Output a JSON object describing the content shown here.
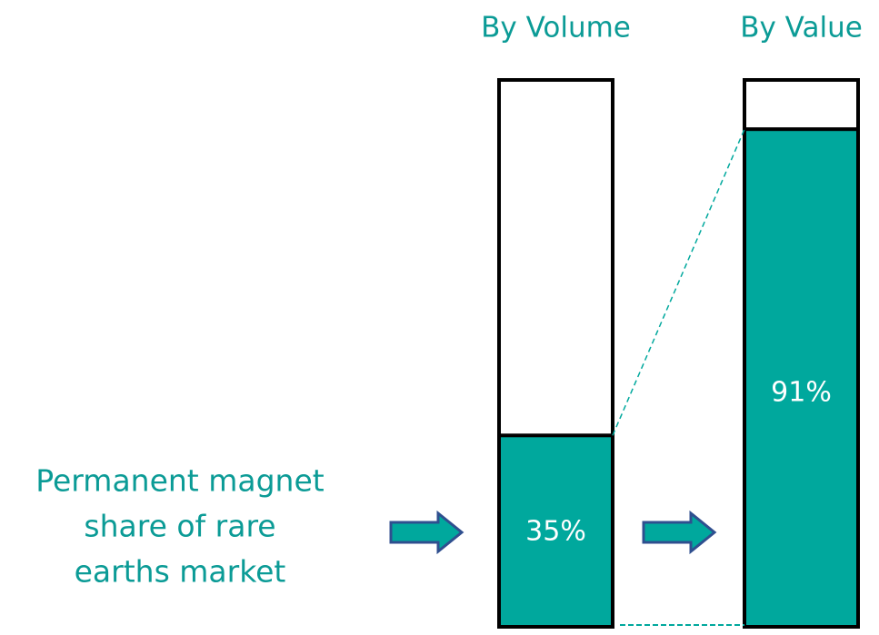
{
  "chart_data": {
    "type": "bar",
    "categories": [
      "By Volume",
      "By Value"
    ],
    "values": [
      35,
      91
    ],
    "value_labels": [
      "35%",
      "91%"
    ],
    "ylim": [
      0,
      100
    ],
    "color": "#00a89d",
    "annotation": [
      "Permanent magnet",
      "share of rare",
      "earths market"
    ]
  }
}
